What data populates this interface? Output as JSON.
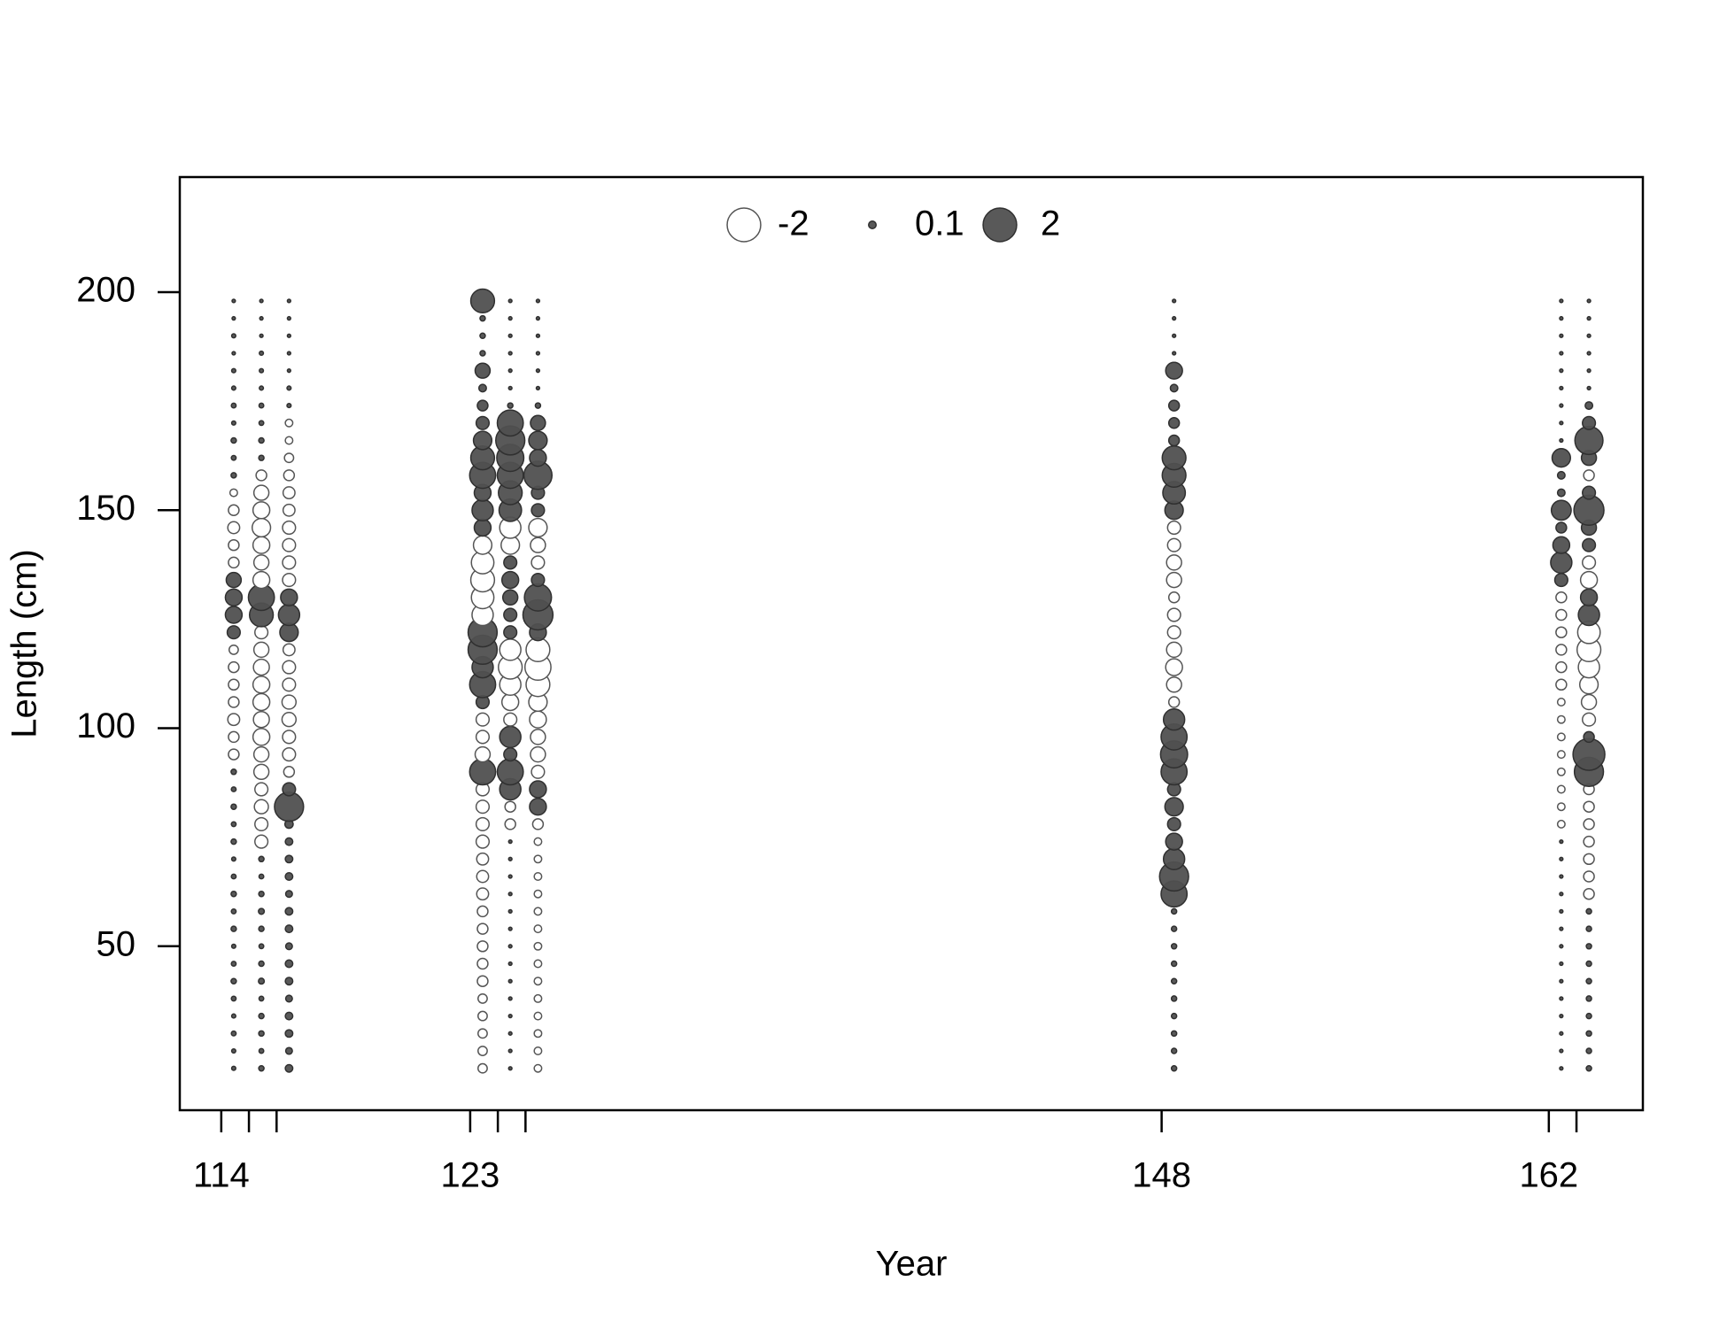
{
  "chart_data": {
    "type": "bubble",
    "xlabel": "Year",
    "ylabel": "Length (cm)",
    "xlim": [
      112.5,
      165.4
    ],
    "ylim": [
      12.4,
      226.4
    ],
    "xticks": [
      114,
      123,
      148,
      162
    ],
    "xminor_ticks": [
      115,
      116,
      124,
      125,
      163
    ],
    "yticks": [
      50,
      100,
      150,
      200
    ],
    "legend": [
      -2,
      0.1,
      2
    ],
    "positive_color": "#505050",
    "negative_color": "#ffffff",
    "y": [
      22,
      26,
      30,
      34,
      38,
      42,
      46,
      50,
      54,
      58,
      62,
      66,
      70,
      74,
      78,
      82,
      86,
      90,
      94,
      98,
      102,
      106,
      110,
      114,
      118,
      122,
      126,
      130,
      134,
      138,
      142,
      146,
      150,
      154,
      158,
      162,
      166,
      170,
      174,
      178,
      182,
      186,
      190,
      194,
      198
    ],
    "series": [
      {
        "x": 114.45,
        "values": [
          0.03,
          0.03,
          0.04,
          0.03,
          0.04,
          0.05,
          0.04,
          0.03,
          0.05,
          0.04,
          0.05,
          0.04,
          0.03,
          0.05,
          0.04,
          0.05,
          0.04,
          0.05,
          -0.2,
          -0.2,
          -0.25,
          -0.2,
          -0.2,
          -0.2,
          -0.15,
          0.3,
          0.5,
          0.5,
          0.4,
          -0.2,
          -0.2,
          -0.25,
          -0.2,
          -0.1,
          0.05,
          0.04,
          0.05,
          0.03,
          0.04,
          0.03,
          0.03,
          0.02,
          0.03,
          0.02,
          0.02
        ]
      },
      {
        "x": 115.45,
        "values": [
          0.05,
          0.04,
          0.05,
          0.05,
          0.04,
          0.06,
          0.05,
          0.04,
          0.05,
          0.06,
          0.05,
          0.04,
          0.05,
          -0.3,
          -0.3,
          -0.35,
          -0.3,
          -0.4,
          -0.4,
          -0.5,
          -0.45,
          -0.5,
          -0.5,
          -0.45,
          -0.4,
          -0.3,
          1.0,
          1.2,
          -0.5,
          -0.4,
          -0.5,
          -0.6,
          -0.5,
          -0.4,
          -0.2,
          0.05,
          0.05,
          0.04,
          0.04,
          0.03,
          0.03,
          0.03,
          0.02,
          0.02,
          0.02
        ]
      },
      {
        "x": 116.45,
        "values": [
          0.1,
          0.08,
          0.1,
          0.1,
          0.08,
          0.1,
          0.1,
          0.08,
          0.1,
          0.1,
          0.08,
          0.1,
          0.1,
          0.1,
          0.12,
          1.5,
          0.3,
          -0.2,
          -0.3,
          -0.3,
          -0.35,
          -0.35,
          -0.3,
          -0.3,
          -0.25,
          0.6,
          0.8,
          0.5,
          -0.3,
          -0.3,
          -0.3,
          -0.3,
          -0.25,
          -0.25,
          -0.2,
          -0.15,
          -0.1,
          -0.1,
          0.03,
          0.03,
          0.02,
          0.02,
          0.02,
          0.02,
          0.02
        ]
      },
      {
        "x": 123.45,
        "values": [
          -0.15,
          -0.15,
          -0.15,
          -0.15,
          -0.15,
          -0.2,
          -0.2,
          -0.2,
          -0.2,
          -0.2,
          -0.25,
          -0.25,
          -0.25,
          -0.3,
          -0.3,
          -0.3,
          -0.3,
          1.2,
          -0.4,
          -0.3,
          -0.3,
          0.3,
          1.2,
          0.8,
          1.5,
          1.5,
          -0.8,
          -0.9,
          -1.0,
          -0.9,
          -0.6,
          0.5,
          0.8,
          0.5,
          1.2,
          1.0,
          0.6,
          0.3,
          0.2,
          0.1,
          0.4,
          0.05,
          0.05,
          0.05,
          1.0
        ]
      },
      {
        "x": 124.45,
        "values": [
          0.02,
          0.02,
          0.02,
          0.02,
          0.02,
          0.02,
          0.02,
          0.02,
          0.02,
          0.02,
          0.02,
          0.02,
          0.02,
          0.02,
          -0.2,
          -0.2,
          0.8,
          1.2,
          0.3,
          0.8,
          -0.3,
          -0.5,
          -0.8,
          -1.0,
          -0.8,
          0.3,
          0.3,
          0.4,
          0.5,
          0.3,
          -0.6,
          -0.8,
          0.9,
          1.0,
          1.2,
          1.3,
          1.5,
          1.2,
          0.05,
          0.02,
          0.02,
          0.02,
          0.02,
          0.02,
          0.02
        ]
      },
      {
        "x": 125.45,
        "values": [
          -0.1,
          -0.1,
          -0.1,
          -0.1,
          -0.1,
          -0.1,
          -0.1,
          -0.1,
          -0.1,
          -0.1,
          -0.1,
          -0.1,
          -0.1,
          -0.1,
          -0.2,
          0.5,
          0.5,
          -0.3,
          -0.4,
          -0.4,
          -0.5,
          -0.6,
          -1.0,
          -1.2,
          -1.0,
          0.5,
          1.6,
          1.3,
          0.3,
          -0.3,
          -0.4,
          -0.6,
          0.3,
          0.3,
          1.4,
          0.5,
          0.6,
          0.4,
          0.05,
          0.02,
          0.02,
          0.02,
          0.02,
          0.02,
          0.02
        ]
      },
      {
        "x": 148.45,
        "values": [
          0.05,
          0.05,
          0.05,
          0.05,
          0.05,
          0.05,
          0.05,
          0.05,
          0.05,
          0.05,
          1.2,
          1.5,
          0.8,
          0.5,
          0.3,
          0.6,
          0.3,
          1.2,
          1.3,
          1.2,
          0.8,
          -0.2,
          -0.4,
          -0.5,
          -0.4,
          -0.3,
          -0.3,
          -0.2,
          -0.4,
          -0.4,
          -0.3,
          -0.3,
          0.6,
          0.9,
          1.0,
          1.0,
          0.2,
          0.2,
          0.2,
          0.1,
          0.5,
          0.02,
          0.02,
          0.02,
          0.02
        ]
      },
      {
        "x": 162.45,
        "values": [
          0.02,
          0.02,
          0.02,
          0.02,
          0.02,
          0.02,
          0.02,
          0.02,
          0.02,
          0.02,
          0.02,
          0.02,
          0.02,
          0.02,
          -0.1,
          -0.1,
          -0.1,
          -0.1,
          -0.1,
          -0.1,
          -0.1,
          -0.1,
          -0.2,
          -0.2,
          -0.2,
          -0.2,
          -0.2,
          -0.2,
          0.3,
          0.8,
          0.5,
          0.2,
          0.7,
          0.1,
          0.1,
          0.6,
          0.02,
          0.02,
          0.02,
          0.02,
          0.02,
          0.02,
          0.02,
          0.02,
          0.02
        ]
      },
      {
        "x": 163.45,
        "values": [
          0.05,
          0.05,
          0.05,
          0.05,
          0.05,
          0.05,
          0.05,
          0.05,
          0.05,
          0.05,
          -0.2,
          -0.2,
          -0.2,
          -0.2,
          -0.2,
          -0.2,
          -0.2,
          1.5,
          1.8,
          0.2,
          -0.3,
          -0.4,
          -0.6,
          -0.8,
          -1.0,
          -0.9,
          0.8,
          0.5,
          -0.5,
          -0.3,
          0.3,
          0.4,
          1.6,
          0.3,
          -0.2,
          0.4,
          1.4,
          0.3,
          0.1,
          0.02,
          0.02,
          0.02,
          0.02,
          0.02,
          0.02
        ]
      }
    ]
  }
}
